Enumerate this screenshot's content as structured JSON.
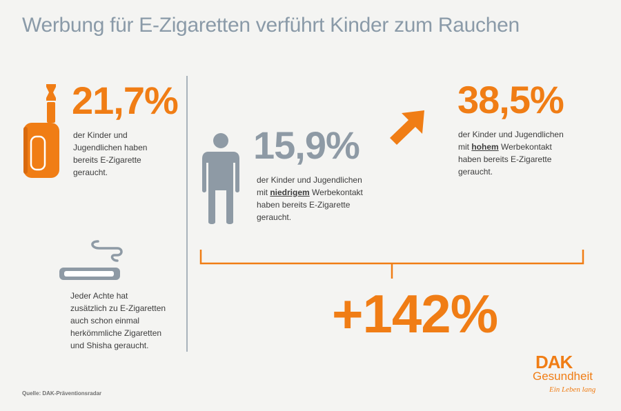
{
  "title": "Werbung für E-Zigaretten verführt Kinder zum Rauchen",
  "stats": {
    "ecig_total": {
      "value": "21,7%",
      "lines": [
        "der Kinder und",
        "Jugendlichen haben",
        "bereits E-Zigarette",
        "geraucht."
      ]
    },
    "low_contact": {
      "value": "15,9%",
      "line1": "der Kinder und Jugendlichen",
      "line2_pre": "mit ",
      "line2_em": "niedrigem",
      "line2_post": " Werbekontakt",
      "line3": "haben bereits E-Zigarette",
      "line4": "geraucht."
    },
    "high_contact": {
      "value": "38,5%",
      "line1": "der Kinder und Jugendlichen",
      "line2_pre": "mit ",
      "line2_em": "hohem",
      "line2_post": " Werbekontakt",
      "line3": "haben bereits E-Zigarette",
      "line4": "geraucht."
    },
    "increase": {
      "value": "+142%"
    }
  },
  "cigarette_note": {
    "lines": [
      "Jeder Achte hat",
      "zusätzlich zu E-Zigaretten",
      "auch schon einmal",
      "herkömmliche Zigaretten",
      "und Shisha geraucht."
    ]
  },
  "source": "Quelle: DAK-Präventionsradar",
  "brand": {
    "logo": "DAK",
    "name": "Gesundheit",
    "tagline": "Ein Leben lang"
  },
  "icons": {
    "vape": "e-cigarette-icon",
    "person": "person-icon",
    "arrow": "arrow-up-right-icon",
    "cigarette": "cigarette-icon"
  },
  "colors": {
    "accent": "#f07d15",
    "gray": "#8e9aa5",
    "title": "#8a9aa8"
  }
}
